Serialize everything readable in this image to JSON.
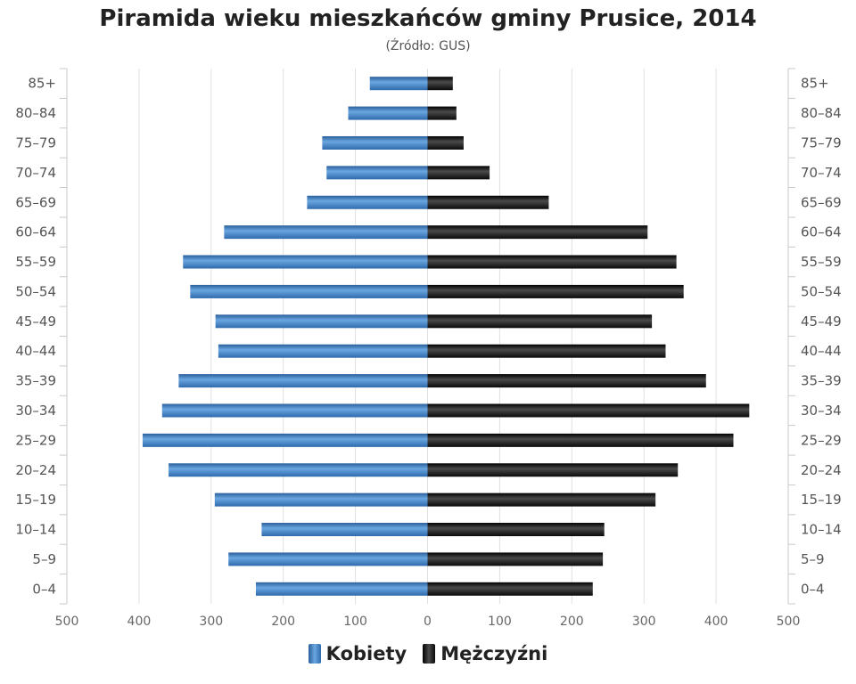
{
  "chart_data": {
    "type": "bar",
    "orientation": "horizontal-pyramid",
    "title": "Piramida wieku mieszkańców gminy Prusice, 2014",
    "subtitle": "(Źródło: GUS)",
    "categories": [
      "85+",
      "80–84",
      "75–79",
      "70–74",
      "65–69",
      "60–64",
      "55–59",
      "50–54",
      "45–49",
      "40–44",
      "35–39",
      "30–34",
      "25–29",
      "20–24",
      "15–19",
      "10–14",
      "5–9",
      "0–4"
    ],
    "series": [
      {
        "name": "Kobiety",
        "values": [
          80,
          110,
          146,
          140,
          167,
          282,
          339,
          329,
          294,
          290,
          345,
          368,
          395,
          359,
          295,
          230,
          276,
          238
        ]
      },
      {
        "name": "Mężczyźni",
        "values": [
          35,
          40,
          50,
          86,
          168,
          305,
          345,
          355,
          311,
          330,
          386,
          446,
          424,
          347,
          316,
          245,
          243,
          229
        ]
      }
    ],
    "xlim": [
      -500,
      500
    ],
    "x_tick_labels": [
      "500",
      "400",
      "300",
      "200",
      "100",
      "0",
      "100",
      "200",
      "300",
      "400",
      "500"
    ],
    "grid": true,
    "legend_position": "bottom",
    "colors": {
      "Kobiety": "#3f7fc4",
      "Mężczyźni": "#1b1b1b"
    }
  }
}
